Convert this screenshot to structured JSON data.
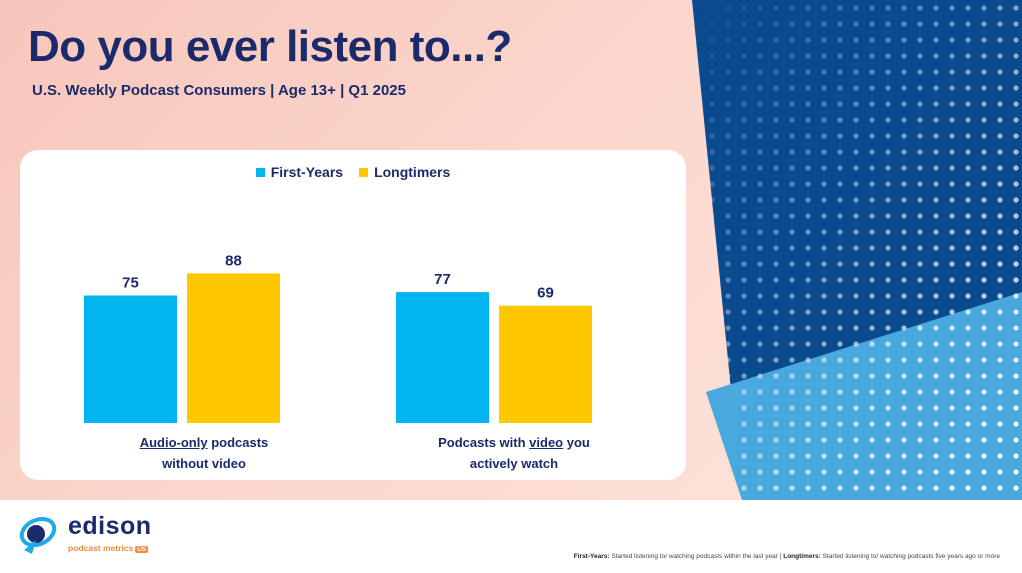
{
  "title": "Do you ever listen to...?",
  "subtitle": "U.S. Weekly Podcast Consumers | Age 13+ | Q1 2025",
  "colors": {
    "first_years": "#00b5f0",
    "longtimers": "#ffc700",
    "navy": "#1b2a6b"
  },
  "chart_data": {
    "type": "bar",
    "categories": [
      "Audio-only podcasts without video",
      "Podcasts with video you actively watch"
    ],
    "category_labels": [
      {
        "underlined": "Audio-only",
        "rest_line1": " podcasts",
        "line2": "without video"
      },
      {
        "prefix": "Podcasts with ",
        "underlined": "video",
        "rest_line1": " you",
        "line2": "actively watch"
      }
    ],
    "series": [
      {
        "name": "First-Years",
        "values": [
          75,
          77
        ],
        "color": "#00b5f0"
      },
      {
        "name": "Longtimers",
        "values": [
          88,
          69
        ],
        "color": "#ffc700"
      }
    ],
    "ylim": [
      0,
      100
    ],
    "grid": false,
    "legend_position": "top-center",
    "data_labels": true
  },
  "logo": {
    "name": "edison",
    "sub": "podcast metrics",
    "badge": "US"
  },
  "footnote": {
    "term1": "First-Years:",
    "def1": " Started listening to/ watching podcasts within the last year | ",
    "term2": "Longtimers:",
    "def2": " Started listening to/ watching podcasts five years ago or more"
  }
}
